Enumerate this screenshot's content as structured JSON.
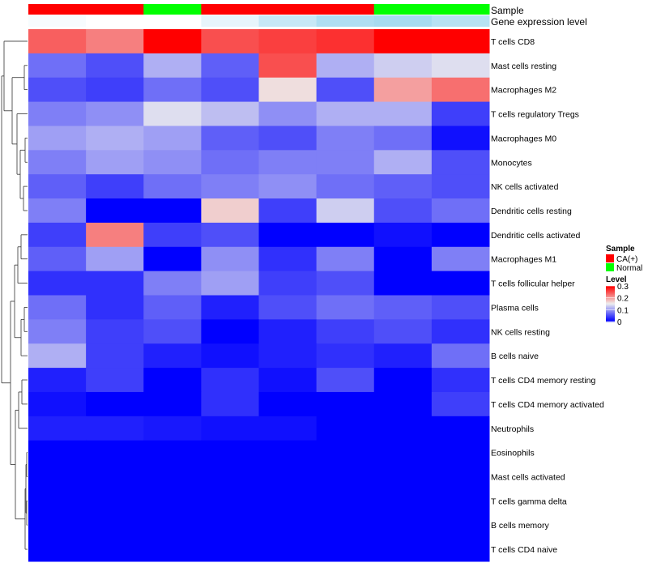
{
  "chart_data": {
    "type": "heatmap",
    "annotation_labels": {
      "sample": "Sample",
      "expression": "Gene expression level"
    },
    "sample_groups": [
      "CA(+)",
      "CA(+)",
      "Normal",
      "CA(+)",
      "CA(+)",
      "CA(+)",
      "Normal",
      "Normal"
    ],
    "expression_level": [
      0.14,
      0.15,
      0.15,
      0.12,
      0.08,
      0.05,
      0.04,
      0.06
    ],
    "rows": [
      "T cells CD8",
      "Mast cells resting",
      "Macrophages M2",
      "T cells regulatory  Tregs",
      "Macrophages M0",
      "Monocytes",
      "NK cells activated",
      "Dendritic cells resting",
      "Dendritic cells activated",
      "Macrophages M1",
      "T cells follicular helper",
      "Plasma cells",
      "NK cells resting",
      "B cells naive",
      "T cells CD4 memory resting",
      "T cells CD4 memory activated",
      "Neutrophils",
      "Eosinophils",
      "Mast cells activated",
      "T cells gamma delta",
      "B cells memory",
      "T cells CD4 naive"
    ],
    "values": [
      [
        0.24,
        0.22,
        0.3,
        0.25,
        0.26,
        0.27,
        0.3,
        0.3
      ],
      [
        0.07,
        0.05,
        0.11,
        0.06,
        0.25,
        0.11,
        0.13,
        0.14
      ],
      [
        0.05,
        0.04,
        0.07,
        0.05,
        0.16,
        0.05,
        0.2,
        0.23
      ],
      [
        0.08,
        0.09,
        0.14,
        0.12,
        0.09,
        0.11,
        0.11,
        0.04
      ],
      [
        0.1,
        0.11,
        0.1,
        0.06,
        0.05,
        0.08,
        0.07,
        0.01
      ],
      [
        0.08,
        0.1,
        0.09,
        0.07,
        0.08,
        0.08,
        0.11,
        0.05
      ],
      [
        0.06,
        0.04,
        0.07,
        0.08,
        0.09,
        0.07,
        0.06,
        0.05
      ],
      [
        0.08,
        0.0,
        0.0,
        0.17,
        0.04,
        0.13,
        0.05,
        0.07
      ],
      [
        0.04,
        0.22,
        0.04,
        0.05,
        0.0,
        0.0,
        0.01,
        0.0
      ],
      [
        0.06,
        0.1,
        0.0,
        0.09,
        0.03,
        0.08,
        0.0,
        0.08
      ],
      [
        0.03,
        0.03,
        0.08,
        0.1,
        0.04,
        0.05,
        0.0,
        0.0
      ],
      [
        0.07,
        0.03,
        0.06,
        0.02,
        0.05,
        0.07,
        0.06,
        0.05
      ],
      [
        0.08,
        0.04,
        0.05,
        0.0,
        0.02,
        0.04,
        0.05,
        0.03
      ],
      [
        0.11,
        0.04,
        0.02,
        0.01,
        0.02,
        0.03,
        0.02,
        0.07
      ],
      [
        0.02,
        0.04,
        0.0,
        0.03,
        0.01,
        0.05,
        0.0,
        0.03
      ],
      [
        0.01,
        0.0,
        0.0,
        0.03,
        0.0,
        0.0,
        0.0,
        0.04
      ],
      [
        0.02,
        0.02,
        0.015,
        0.01,
        0.01,
        0.0,
        0.0,
        0.0
      ],
      [
        0.0,
        0.0,
        0.0,
        0.0,
        0.0,
        0.0,
        0.0,
        0.0
      ],
      [
        0.0,
        0.0,
        0.0,
        0.0,
        0.0,
        0.0,
        0.0,
        0.0
      ],
      [
        0.0,
        0.0,
        0.0,
        0.0,
        0.0,
        0.0,
        0.0,
        0.0
      ],
      [
        0.0,
        0.0,
        0.0,
        0.0,
        0.0,
        0.0,
        0.0,
        0.0
      ],
      [
        0.0,
        0.0,
        0.0,
        0.0,
        0.0,
        0.0,
        0.0,
        0.0
      ]
    ],
    "color_scale": {
      "range": [
        0,
        0.3
      ],
      "stops": [
        {
          "value": 0,
          "color": "#0000ff"
        },
        {
          "value": 0.15,
          "color": "#eeeeee"
        },
        {
          "value": 0.3,
          "color": "#ff0000"
        }
      ]
    },
    "annotation_colors": {
      "CA(+)": "#ff0000",
      "Normal": "#00ff00"
    },
    "expression_scale": {
      "range": [
        0,
        0.15
      ],
      "stops": [
        {
          "value": 0,
          "color": "#87ceeb"
        },
        {
          "value": 0.15,
          "color": "#ffffff"
        }
      ]
    },
    "legend": {
      "sample_title": "Sample",
      "sample_entries": [
        "CA(+)",
        "Normal"
      ],
      "level_title": "Level",
      "level_ticks": [
        "0.3",
        "0.2",
        "0.1",
        "0"
      ],
      "placement": "right"
    },
    "row_dendrogram": "left",
    "grid": false
  }
}
